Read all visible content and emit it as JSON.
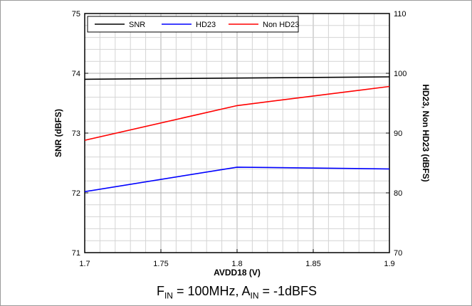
{
  "chart_data": {
    "type": "line",
    "xlabel": "AVDD18 (V)",
    "ylabel_left": "SNR (dBFS)",
    "ylabel_right": "HD23, Non HD23 (dBFS)",
    "xlim": [
      1.7,
      1.9
    ],
    "ylim_left": [
      71,
      75
    ],
    "ylim_right": [
      70,
      110
    ],
    "x_ticks": [
      "1.7",
      "1.75",
      "1.8",
      "1.85",
      "1.9"
    ],
    "y_ticks_left": [
      "71",
      "72",
      "73",
      "74",
      "75"
    ],
    "y_ticks_right": [
      "70",
      "80",
      "90",
      "100",
      "110"
    ],
    "grid": true,
    "legend_position": "top-left",
    "series": [
      {
        "name": "SNR",
        "axis": "left",
        "color": "#000000",
        "x": [
          1.7,
          1.8,
          1.9
        ],
        "y": [
          73.9,
          73.92,
          73.94
        ]
      },
      {
        "name": "HD23",
        "axis": "right",
        "color": "#0000ff",
        "x": [
          1.7,
          1.8,
          1.9
        ],
        "y": [
          80.2,
          84.3,
          84.0
        ]
      },
      {
        "name": "Non HD23",
        "axis": "right",
        "color": "#ff0000",
        "x": [
          1.7,
          1.8,
          1.9
        ],
        "y": [
          88.8,
          94.6,
          97.8
        ]
      }
    ]
  },
  "caption": {
    "f_main": "F",
    "f_sub": "IN",
    "f_value": " = 100MHz, A",
    "a_sub": "IN",
    "a_value": " = -1dBFS"
  }
}
